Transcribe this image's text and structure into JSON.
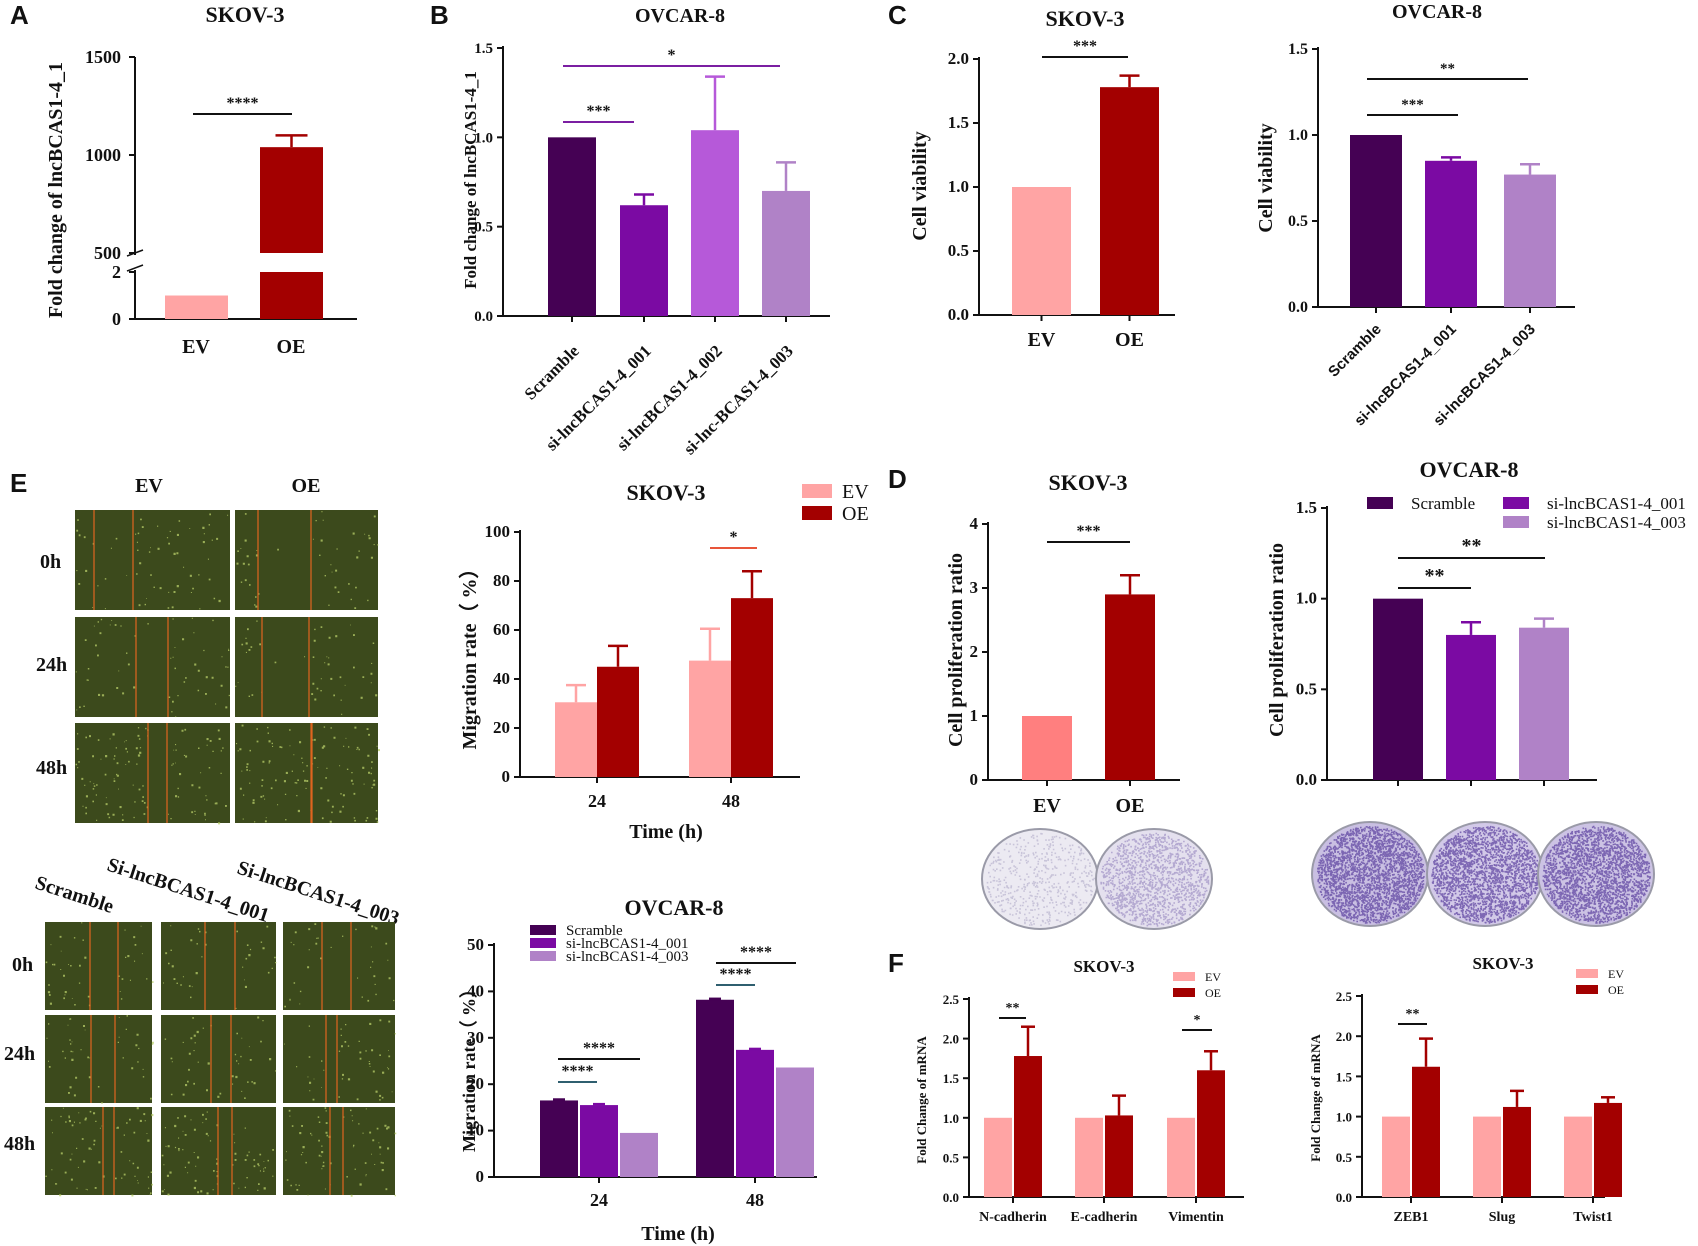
{
  "figure": {
    "panel_letters": [
      "A",
      "B",
      "C",
      "D",
      "E",
      "F"
    ]
  },
  "colors": {
    "ev": "#ffa4a4",
    "oe": "#a30000",
    "scramble": "#450154",
    "si001": "#7b0aa3",
    "si002": "#b659d9",
    "si003": "#b082c7",
    "ev_plate": "#ff7f7f",
    "sig_purple": "#7b1fa2",
    "sig_orange": "#e8553a",
    "sig_teal": "#2f5f6f"
  },
  "scratch_panel": {
    "top_headers": [
      "EV",
      "OE"
    ],
    "top_rows": [
      "0h",
      "24h",
      "48h"
    ],
    "bottom_headers": [
      "Scramble",
      "Si-lncBCAS1-4_001",
      "Si-lncBCAS1-4_003"
    ],
    "bottom_rows": [
      "0h",
      "24h",
      "48h"
    ]
  },
  "chart_data": [
    {
      "id": "A",
      "type": "bar",
      "title": "SKOV-3",
      "ylabel": "Fold change of lncBCAS1-4_1",
      "categories": [
        "EV",
        "OE"
      ],
      "values": [
        1,
        1040
      ],
      "errors": [
        0,
        60
      ],
      "axis_break": true,
      "lower_ylim": [
        0,
        2
      ],
      "upper_ylim": [
        500,
        1500
      ],
      "yticks_lower": [
        "0",
        "2"
      ],
      "yticks_upper": [
        "500",
        "1000",
        "1500"
      ],
      "significance": [
        {
          "label": "****",
          "from": 0,
          "to": 1
        }
      ]
    },
    {
      "id": "B",
      "type": "bar",
      "title": "OVCAR-8",
      "ylabel": "Fold change of lncBCAS1-4_1",
      "categories": [
        "Scramble",
        "si-lncBCAS1-4_001",
        "si-lncBCAS1-4_002",
        "si-lnc-BCAS1-4_003"
      ],
      "values": [
        1.0,
        0.62,
        1.04,
        0.7
      ],
      "errors": [
        0,
        0.06,
        0.3,
        0.16
      ],
      "ylim": [
        0,
        1.5
      ],
      "yticks": [
        "0.0",
        "0.5",
        "1.0",
        "1.5"
      ],
      "significance": [
        {
          "label": "***",
          "from": 0,
          "to": 1
        },
        {
          "label": "*",
          "from": 0,
          "to": 3
        }
      ]
    },
    {
      "id": "C1",
      "type": "bar",
      "title": "SKOV-3",
      "ylabel": "Cell viability",
      "categories": [
        "EV",
        "OE"
      ],
      "values": [
        1.0,
        1.78
      ],
      "errors": [
        0,
        0.09
      ],
      "ylim": [
        0,
        2.0
      ],
      "yticks": [
        "0.0",
        "0.5",
        "1.0",
        "1.5",
        "2.0"
      ],
      "significance": [
        {
          "label": "***",
          "from": 0,
          "to": 1
        }
      ]
    },
    {
      "id": "C2",
      "type": "bar",
      "title": "OVCAR-8",
      "ylabel": "Cell viability",
      "categories": [
        "Scramble",
        "si-lncBCAS1-4_001",
        "si-lncBCAS1-4_003"
      ],
      "values": [
        1.0,
        0.85,
        0.77
      ],
      "errors": [
        0,
        0.02,
        0.06
      ],
      "ylim": [
        0,
        1.5
      ],
      "yticks": [
        "0.0",
        "0.5",
        "1.0",
        "1.5"
      ],
      "significance": [
        {
          "label": "***",
          "from": 0,
          "to": 1
        },
        {
          "label": "**",
          "from": 0,
          "to": 2
        }
      ]
    },
    {
      "id": "E1",
      "type": "bar",
      "title": "SKOV-3",
      "ylabel": "Migration rate（ %）",
      "xlabel": "Time (h)",
      "categories": [
        "24",
        "48"
      ],
      "series": [
        {
          "name": "EV",
          "values": [
            30.5,
            47.5
          ],
          "errors": [
            7,
            13
          ]
        },
        {
          "name": "OE",
          "values": [
            45,
            73
          ],
          "errors": [
            8.5,
            11
          ]
        }
      ],
      "ylim": [
        0,
        100
      ],
      "yticks": [
        "0",
        "20",
        "40",
        "60",
        "80",
        "100"
      ],
      "legend": "top-right",
      "significance": [
        {
          "label": "*",
          "group": 1,
          "from": 0,
          "to": 1
        }
      ]
    },
    {
      "id": "E2",
      "type": "bar",
      "title": "OVCAR-8",
      "ylabel": "Migration rate（ %）",
      "xlabel": "Time (h)",
      "categories": [
        "24",
        "48"
      ],
      "series": [
        {
          "name": "Scramble",
          "values": [
            16.5,
            38.2
          ],
          "errors": [
            0.2,
            0.2
          ]
        },
        {
          "name": "si-lncBCAS1-4_001",
          "values": [
            15.5,
            27.4
          ],
          "errors": [
            0.2,
            0.2
          ]
        },
        {
          "name": "si-lncBCAS1-4_003",
          "values": [
            9.5,
            23.6
          ],
          "errors": [
            0.1,
            0.1
          ]
        }
      ],
      "ylim": [
        0,
        50
      ],
      "yticks": [
        "0",
        "10",
        "20",
        "30",
        "40",
        "50"
      ],
      "legend": "top-left",
      "significance": [
        {
          "label": "****",
          "group": 0,
          "from": 0,
          "to": 1
        },
        {
          "label": "****",
          "group": 0,
          "from": 0,
          "to": 2
        },
        {
          "label": "****",
          "group": 1,
          "from": 0,
          "to": 1
        },
        {
          "label": "****",
          "group": 1,
          "from": 0,
          "to": 2
        }
      ]
    },
    {
      "id": "D1",
      "type": "bar",
      "title": "SKOV-3",
      "ylabel": "Cell proliferation ratio",
      "categories": [
        "EV",
        "OE"
      ],
      "values": [
        1.0,
        2.9
      ],
      "errors": [
        0,
        0.3
      ],
      "ylim": [
        0,
        4
      ],
      "yticks": [
        "0",
        "1",
        "2",
        "3",
        "4"
      ],
      "significance": [
        {
          "label": "***",
          "from": 0,
          "to": 1
        }
      ]
    },
    {
      "id": "D2",
      "type": "bar",
      "title": "OVCAR-8",
      "ylabel": "Cell proliferation ratio",
      "categories": [
        "",
        "",
        ""
      ],
      "values": [
        1.0,
        0.8,
        0.84
      ],
      "errors": [
        0,
        0.07,
        0.05
      ],
      "ylim": [
        0,
        1.5
      ],
      "yticks": [
        "0.0",
        "0.5",
        "1.0",
        "1.5"
      ],
      "legend_items": [
        "Scramble",
        "si-lncBCAS1-4_001",
        "si-lncBCAS1-4_003"
      ],
      "significance": [
        {
          "label": "**",
          "from": 0,
          "to": 1
        },
        {
          "label": "**",
          "from": 0,
          "to": 2
        }
      ]
    },
    {
      "id": "F1",
      "type": "bar",
      "title": "SKOV-3",
      "ylabel": "Fold Change of mRNA",
      "categories": [
        "N-cadherin",
        "E-cadherin",
        "Vimentin"
      ],
      "series": [
        {
          "name": "EV",
          "values": [
            1.0,
            1.0,
            1.0
          ],
          "errors": [
            0,
            0,
            0
          ]
        },
        {
          "name": "OE",
          "values": [
            1.78,
            1.03,
            1.6
          ],
          "errors": [
            0.37,
            0.25,
            0.24
          ]
        }
      ],
      "ylim": [
        0,
        2.5
      ],
      "yticks": [
        "0.0",
        "0.5",
        "1.0",
        "1.5",
        "2.0",
        "2.5"
      ],
      "legend": "top-right",
      "significance": [
        {
          "label": "**",
          "group": 0
        },
        {
          "label": "*",
          "group": 2
        }
      ]
    },
    {
      "id": "F2",
      "type": "bar",
      "title": "SKOV-3",
      "ylabel": "Fold Change of mRNA",
      "categories": [
        "ZEB1",
        "Slug",
        "Twist1"
      ],
      "series": [
        {
          "name": "EV",
          "values": [
            1.0,
            1.0,
            1.0
          ],
          "errors": [
            0,
            0,
            0
          ]
        },
        {
          "name": "OE",
          "values": [
            1.62,
            1.12,
            1.17
          ],
          "errors": [
            0.35,
            0.2,
            0.07
          ]
        }
      ],
      "ylim": [
        0,
        2.5
      ],
      "yticks": [
        "0.0",
        "0.5",
        "1.0",
        "1.5",
        "2.0",
        "2.5"
      ],
      "legend": "top-right",
      "significance": [
        {
          "label": "**",
          "group": 0
        }
      ]
    }
  ]
}
